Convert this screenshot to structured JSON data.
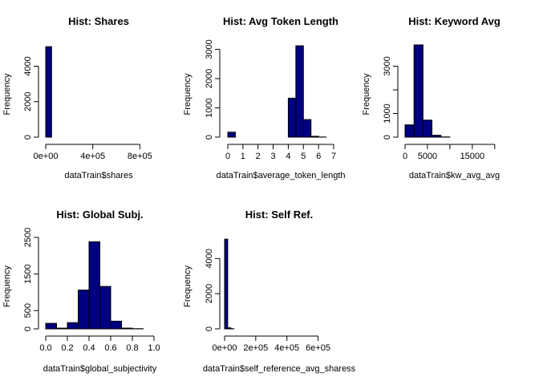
{
  "colors": {
    "bar_fill": "#000080",
    "bar_stroke": "#000000"
  },
  "chart_data": [
    {
      "type": "bar",
      "title": "Hist: Shares",
      "xlabel": "dataTrain$shares",
      "ylabel": "Frequency",
      "xlim": [
        0,
        900000
      ],
      "ylim": [
        0,
        5200
      ],
      "xticks": [
        0,
        400000,
        800000
      ],
      "xtick_labels": [
        "0e+00",
        "4e+05",
        "8e+05"
      ],
      "yticks": [
        0,
        2000,
        4000
      ],
      "ytick_labels": [
        "0",
        "2000",
        "4000"
      ],
      "bins": [
        {
          "x0": 0,
          "x1": 50000,
          "count": 5100
        }
      ]
    },
    {
      "type": "bar",
      "title": "Hist: Avg Token Length",
      "xlabel": "dataTrain$average_token_length",
      "ylabel": "Frequency",
      "xlim": [
        0,
        7
      ],
      "ylim": [
        0,
        3150
      ],
      "xticks": [
        0,
        1,
        2,
        3,
        4,
        5,
        6,
        7
      ],
      "xtick_labels": [
        "0",
        "1",
        "2",
        "3",
        "4",
        "5",
        "6",
        "7"
      ],
      "yticks": [
        0,
        1000,
        2000,
        3000
      ],
      "ytick_labels": [
        "0",
        "1000",
        "2000",
        "3000"
      ],
      "bins": [
        {
          "x0": 0,
          "x1": 0.5,
          "count": 170
        },
        {
          "x0": 4,
          "x1": 4.5,
          "count": 1330
        },
        {
          "x0": 4.5,
          "x1": 5,
          "count": 3120
        },
        {
          "x0": 5,
          "x1": 5.5,
          "count": 600
        },
        {
          "x0": 5.5,
          "x1": 6,
          "count": 30
        },
        {
          "x0": 6,
          "x1": 6.5,
          "count": 5
        }
      ]
    },
    {
      "type": "bar",
      "title": "Hist: Keyword Avg",
      "xlabel": "dataTrain$kw_avg_avg",
      "ylabel": "Frequency",
      "xlim": [
        0,
        22000
      ],
      "ylim": [
        0,
        3900
      ],
      "xticks": [
        0,
        5000,
        10000,
        15000,
        20000
      ],
      "xtick_labels": [
        "0",
        "5000",
        "",
        "15000",
        ""
      ],
      "yticks": [
        0,
        1000,
        2000,
        3000
      ],
      "ytick_labels": [
        "0",
        "1000",
        "",
        "3000"
      ],
      "bins": [
        {
          "x0": 0,
          "x1": 2000,
          "count": 520
        },
        {
          "x0": 2000,
          "x1": 4000,
          "count": 3900
        },
        {
          "x0": 4000,
          "x1": 6000,
          "count": 720
        },
        {
          "x0": 6000,
          "x1": 8000,
          "count": 80
        },
        {
          "x0": 8000,
          "x1": 10000,
          "count": 10
        }
      ]
    },
    {
      "type": "bar",
      "title": "Hist: Global Subj.",
      "xlabel": "dataTrain$global_subjectivity",
      "ylabel": "Frequency",
      "xlim": [
        0,
        1
      ],
      "ylim": [
        0,
        2500
      ],
      "xticks": [
        0,
        0.2,
        0.4,
        0.6,
        0.8,
        1.0
      ],
      "xtick_labels": [
        "0.0",
        "0.2",
        "0.4",
        "0.6",
        "0.8",
        "1.0"
      ],
      "yticks": [
        0,
        500,
        1500,
        2500
      ],
      "ytick_labels": [
        "0",
        "500",
        "1500",
        "2500"
      ],
      "bins": [
        {
          "x0": 0,
          "x1": 0.1,
          "count": 150
        },
        {
          "x0": 0.1,
          "x1": 0.2,
          "count": 20
        },
        {
          "x0": 0.2,
          "x1": 0.3,
          "count": 170
        },
        {
          "x0": 0.3,
          "x1": 0.4,
          "count": 1060
        },
        {
          "x0": 0.4,
          "x1": 0.5,
          "count": 2380
        },
        {
          "x0": 0.5,
          "x1": 0.6,
          "count": 1160
        },
        {
          "x0": 0.6,
          "x1": 0.7,
          "count": 210
        },
        {
          "x0": 0.7,
          "x1": 0.8,
          "count": 20
        },
        {
          "x0": 0.8,
          "x1": 0.9,
          "count": 5
        }
      ]
    },
    {
      "type": "bar",
      "title": "Hist: Self Ref.",
      "xlabel": "dataTrain$self_reference_avg_sharess",
      "ylabel": "Frequency",
      "xlim": [
        0,
        700000
      ],
      "ylim": [
        0,
        5200
      ],
      "xticks": [
        0,
        200000,
        400000,
        600000
      ],
      "xtick_labels": [
        "0e+00",
        "2e+05",
        "4e+05",
        "6e+05"
      ],
      "yticks": [
        0,
        2000,
        4000
      ],
      "ytick_labels": [
        "0",
        "2000",
        "4000"
      ],
      "bins": [
        {
          "x0": 0,
          "x1": 20000,
          "count": 5100
        },
        {
          "x0": 20000,
          "x1": 40000,
          "count": 60
        },
        {
          "x0": 40000,
          "x1": 60000,
          "count": 10
        }
      ]
    }
  ]
}
